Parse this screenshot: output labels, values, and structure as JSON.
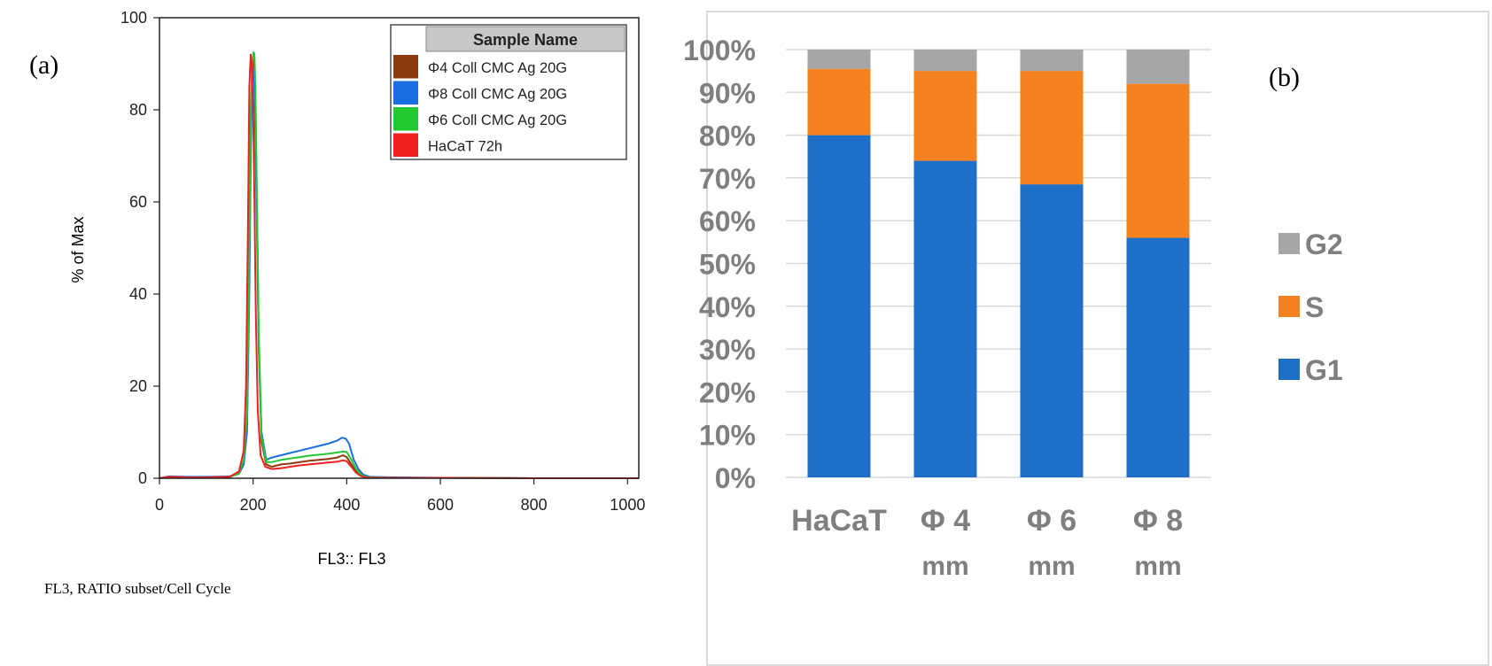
{
  "chart_data": [
    {
      "type": "line",
      "panel_label": "(a)",
      "xlabel": "FL3:: FL3",
      "ylabel": "% of Max",
      "footer": "FL3, RATIO subset/Cell Cycle",
      "xlim": [
        0,
        1024
      ],
      "ylim": [
        0,
        100
      ],
      "x_ticks": [
        0,
        200,
        400,
        600,
        800,
        1000
      ],
      "y_ticks": [
        0,
        20,
        40,
        60,
        80,
        100
      ],
      "legend_title": "Sample Name",
      "legend_placement": "top-right",
      "grid": false,
      "series": [
        {
          "name": "Φ4 Coll CMC Ag 20G",
          "color": "#8b3a0f",
          "x": [
            0,
            20,
            60,
            100,
            150,
            170,
            180,
            187,
            192,
            195,
            198,
            201,
            203,
            205,
            208,
            212,
            218,
            228,
            240,
            260,
            280,
            300,
            320,
            340,
            360,
            380,
            392,
            400,
            410,
            420,
            430,
            440,
            460,
            500,
            600,
            800,
            1000,
            1024
          ],
          "y": [
            0,
            0.3,
            0.2,
            0.2,
            0.3,
            1,
            3,
            12,
            45,
            75,
            88,
            91,
            89,
            80,
            60,
            30,
            8,
            3,
            2.5,
            3,
            3.2,
            3.5,
            3.8,
            4,
            4.2,
            4.5,
            5,
            4.6,
            3,
            1.5,
            0.6,
            0.3,
            0.2,
            0.1,
            0.1,
            0,
            0,
            0
          ]
        },
        {
          "name": "Φ8 Coll CMC Ag 20G",
          "color": "#1a6fe0",
          "x": [
            0,
            20,
            60,
            100,
            150,
            170,
            180,
            187,
            192,
            195,
            198,
            200,
            202,
            204,
            208,
            212,
            218,
            228,
            240,
            260,
            280,
            300,
            320,
            340,
            360,
            380,
            390,
            398,
            405,
            415,
            425,
            435,
            450,
            500,
            600,
            800,
            1000,
            1024
          ],
          "y": [
            0,
            0.4,
            0.3,
            0.3,
            0.4,
            1,
            3,
            10,
            40,
            70,
            86,
            89,
            87,
            78,
            55,
            28,
            10,
            4,
            4.5,
            5,
            5.5,
            6,
            6.5,
            7,
            7.5,
            8.2,
            8.8,
            8.6,
            7.5,
            4,
            2,
            0.8,
            0.3,
            0.2,
            0.1,
            0,
            0,
            0
          ]
        },
        {
          "name": "Φ6 Coll CMC Ag 20G",
          "color": "#22c832",
          "x": [
            0,
            20,
            60,
            100,
            150,
            170,
            180,
            187,
            192,
            195,
            198,
            201,
            203,
            205,
            208,
            212,
            218,
            228,
            240,
            260,
            280,
            300,
            320,
            340,
            360,
            380,
            392,
            400,
            410,
            420,
            430,
            440,
            460,
            500,
            600,
            800,
            1000,
            1024
          ],
          "y": [
            0,
            0.3,
            0.2,
            0.2,
            0.3,
            1,
            4,
            14,
            50,
            80,
            90,
            92.5,
            92,
            85,
            62,
            32,
            9,
            3.5,
            3.5,
            4,
            4.3,
            4.6,
            4.9,
            5.1,
            5.3,
            5.6,
            5.8,
            5.7,
            4,
            2,
            0.8,
            0.3,
            0.2,
            0.1,
            0.1,
            0,
            0,
            0
          ]
        },
        {
          "name": "HaCaT 72h",
          "color": "#f02020",
          "x": [
            0,
            20,
            60,
            100,
            150,
            170,
            180,
            185,
            189,
            192,
            195,
            197,
            200,
            203,
            206,
            210,
            216,
            226,
            240,
            260,
            280,
            300,
            320,
            340,
            360,
            380,
            392,
            400,
            410,
            420,
            430,
            440,
            460,
            500,
            600,
            800,
            1000,
            1024
          ],
          "y": [
            0,
            0.3,
            0.2,
            0.2,
            0.3,
            1.5,
            6,
            20,
            55,
            85,
            92,
            90,
            80,
            60,
            35,
            15,
            5,
            2.5,
            2,
            2.2,
            2.5,
            2.8,
            3,
            3.2,
            3.4,
            3.6,
            3.9,
            3.7,
            2.5,
            1.2,
            0.5,
            0.2,
            0.1,
            0.1,
            0.1,
            0,
            0,
            0
          ]
        }
      ]
    },
    {
      "type": "bar",
      "stacked": true,
      "percent": true,
      "panel_label": "(b)",
      "categories": [
        [
          "HaCaT"
        ],
        [
          "Φ 4",
          "mm"
        ],
        [
          "Φ 6",
          "mm"
        ],
        [
          "Φ 8",
          "mm"
        ]
      ],
      "ylim": [
        0,
        100
      ],
      "y_ticks": [
        "0%",
        "10%",
        "20%",
        "30%",
        "40%",
        "50%",
        "60%",
        "70%",
        "80%",
        "90%",
        "100%"
      ],
      "legend_placement": "right",
      "grid": true,
      "series": [
        {
          "name": "G1",
          "color": "#1f6fc8",
          "values": [
            80,
            74,
            68.5,
            56
          ]
        },
        {
          "name": "S",
          "color": "#f58220",
          "values": [
            15.5,
            21,
            26.5,
            36
          ]
        },
        {
          "name": "G2",
          "color": "#a6a6a6",
          "values": [
            4.5,
            5,
            5,
            8
          ]
        }
      ]
    }
  ]
}
